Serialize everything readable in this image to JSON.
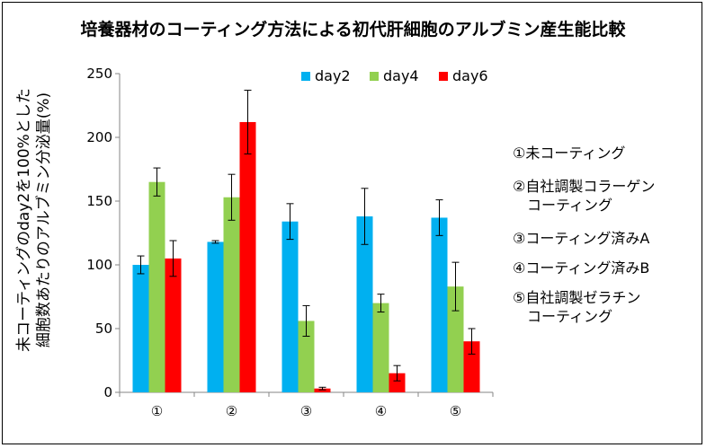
{
  "chart_data": {
    "type": "bar",
    "title": "培養器材のコーティング方法による初代肝細胞のアルブミン産生能比較",
    "ylabel_lines": [
      "未コーティングのday2を100%とした",
      "細胞数あたりのアルブミン分泌量(%)"
    ],
    "xlabel": "",
    "categories": [
      "①",
      "②",
      "③",
      "④",
      "⑤"
    ],
    "ylim": [
      0,
      250
    ],
    "yticks": [
      0,
      50,
      100,
      150,
      200,
      250
    ],
    "grid": false,
    "legend_position": "top-right",
    "series": [
      {
        "name": "day2",
        "color": "#00B0F0",
        "values": [
          100,
          118,
          134,
          138,
          137
        ],
        "errors": [
          7,
          1,
          14,
          22,
          14
        ]
      },
      {
        "name": "day4",
        "color": "#92D050",
        "values": [
          165,
          153,
          56,
          70,
          83
        ],
        "errors": [
          11,
          18,
          12,
          7,
          19
        ]
      },
      {
        "name": "day6",
        "color": "#FF0000",
        "values": [
          105,
          212,
          3,
          15,
          40
        ],
        "errors": [
          14,
          25,
          1,
          6,
          10
        ]
      }
    ]
  },
  "notes": [
    "①未コーティング",
    "②自社調製コラーゲン\n　コーティング",
    "③コーティング済みA",
    "④コーティング済みB",
    "⑤自社調製ゼラチン\n　コーティング"
  ]
}
